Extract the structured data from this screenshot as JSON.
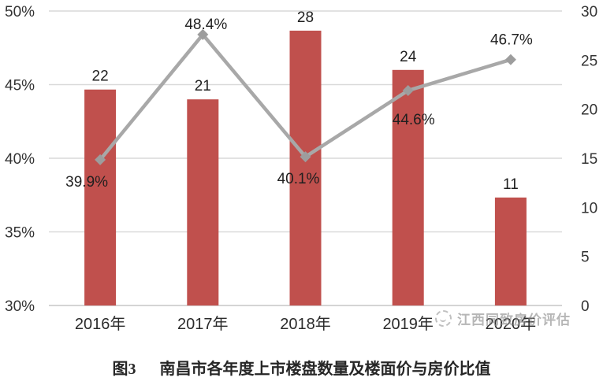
{
  "caption": {
    "figure_label": "图3",
    "title": "南昌市各年度上市楼盘数量及楼面价与房价比值"
  },
  "watermark": {
    "text": "江西同致房价评估",
    "logo": "dotted-circle-logo"
  },
  "colors": {
    "bar": "#c0504d",
    "line": "#a8a8a8",
    "marker": "#9d9d9d",
    "grid": "#d9d9d9",
    "axis_line": "#c6c6c6",
    "axis_text": "#333333",
    "label_text": "#1f1f1f"
  },
  "chart_data": {
    "type": "combo-bar-line",
    "categories": [
      "2016年",
      "2017年",
      "2018年",
      "2019年",
      "2020年"
    ],
    "series": [
      {
        "type": "bar",
        "axis": "right",
        "values": [
          22,
          21,
          28,
          24,
          11
        ],
        "labels": [
          "22",
          "21",
          "28",
          "24",
          "11"
        ],
        "color": "#c0504d"
      },
      {
        "type": "line",
        "axis": "left",
        "marker": "diamond",
        "values": [
          39.9,
          48.4,
          40.1,
          44.6,
          46.7
        ],
        "labels": [
          "39.9%",
          "48.4%",
          "40.1%",
          "44.6%",
          "46.7%"
        ],
        "label_side": [
          "below",
          "above",
          "below",
          "below",
          "above"
        ],
        "color": "#a8a8a8"
      }
    ],
    "axes": {
      "left": {
        "min": 30,
        "max": 50,
        "ticks": [
          "50%",
          "45%",
          "40%",
          "35%",
          "30%"
        ]
      },
      "right": {
        "min": 0,
        "max": 30,
        "ticks": [
          "30",
          "25",
          "20",
          "15",
          "10",
          "5",
          "0"
        ]
      }
    },
    "grid": "horizontal",
    "legend": "none"
  }
}
